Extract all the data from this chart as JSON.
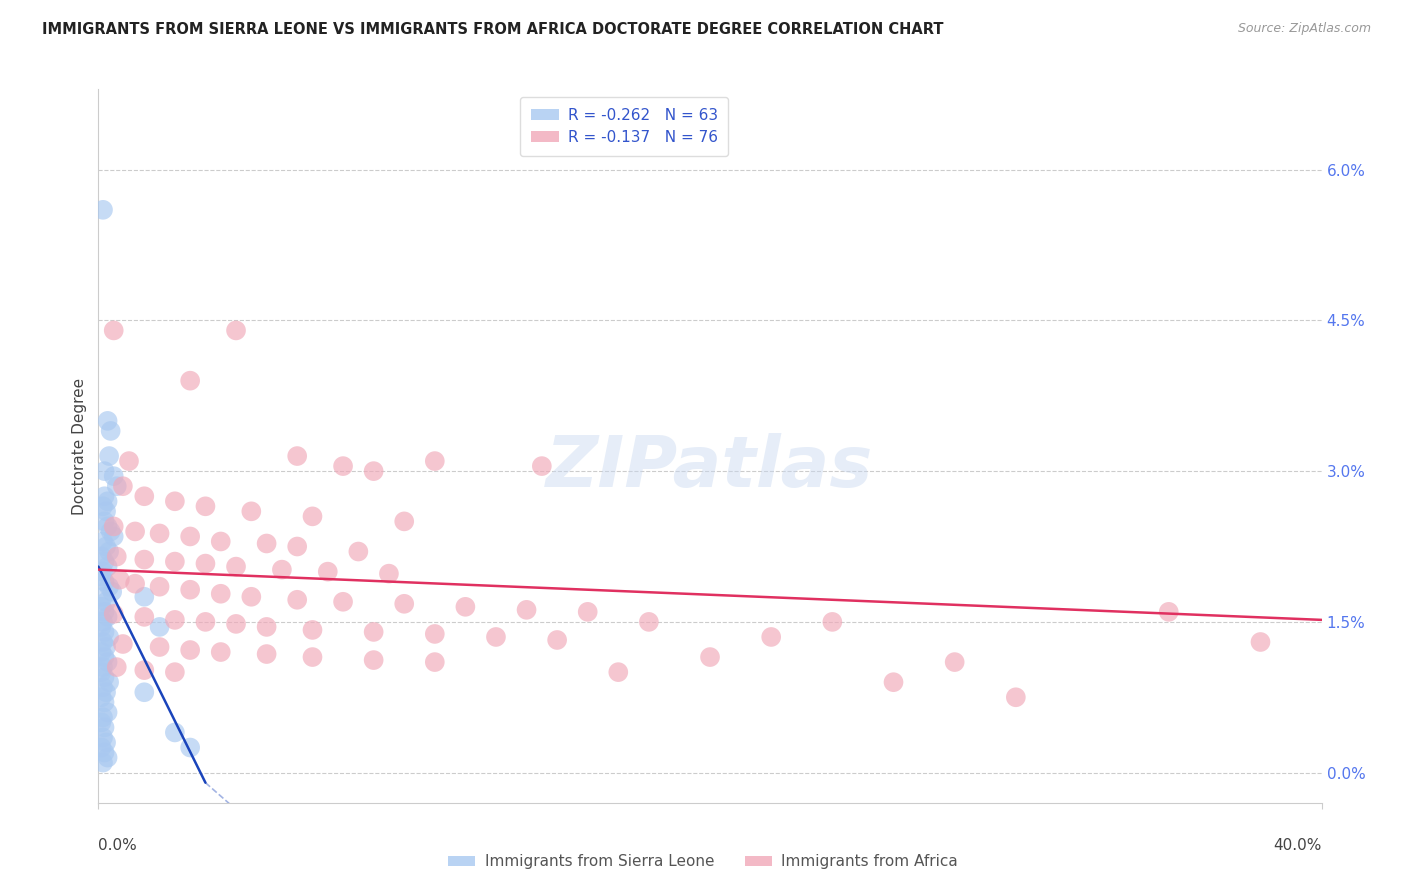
{
  "title": "IMMIGRANTS FROM SIERRA LEONE VS IMMIGRANTS FROM AFRICA DOCTORATE DEGREE CORRELATION CHART",
  "source": "Source: ZipAtlas.com",
  "ylabel": "Doctorate Degree",
  "ytick_values": [
    0.0,
    1.5,
    3.0,
    4.5,
    6.0
  ],
  "xlim": [
    0.0,
    40.0
  ],
  "ylim": [
    -0.3,
    6.8
  ],
  "ymin_display": 0.0,
  "ymax_display": 6.0,
  "legend_entries": [
    {
      "label": "R = -0.262   N = 63",
      "color": "#a8c8f0"
    },
    {
      "label": "R = -0.137   N = 76",
      "color": "#f0a8b8"
    }
  ],
  "legend_labels_bottom": [
    "Immigrants from Sierra Leone",
    "Immigrants from Africa"
  ],
  "sierra_leone_color": "#a8c8f0",
  "africa_color": "#f0a8b8",
  "regression_sierra_color": "#1a44bb",
  "regression_africa_color": "#e03060",
  "background_color": "#ffffff",
  "grid_color": "#cccccc",
  "sierra_leone_points": [
    [
      0.15,
      5.6
    ],
    [
      0.3,
      3.5
    ],
    [
      0.4,
      3.4
    ],
    [
      0.2,
      3.0
    ],
    [
      0.35,
      3.15
    ],
    [
      0.5,
      2.95
    ],
    [
      0.6,
      2.85
    ],
    [
      0.2,
      2.75
    ],
    [
      0.3,
      2.7
    ],
    [
      0.15,
      2.65
    ],
    [
      0.25,
      2.6
    ],
    [
      0.2,
      2.5
    ],
    [
      0.3,
      2.45
    ],
    [
      0.4,
      2.4
    ],
    [
      0.5,
      2.35
    ],
    [
      0.15,
      2.3
    ],
    [
      0.25,
      2.25
    ],
    [
      0.35,
      2.2
    ],
    [
      0.1,
      2.15
    ],
    [
      0.2,
      2.1
    ],
    [
      0.3,
      2.05
    ],
    [
      0.15,
      2.0
    ],
    [
      0.1,
      1.95
    ],
    [
      0.2,
      1.9
    ],
    [
      0.35,
      1.85
    ],
    [
      0.45,
      1.8
    ],
    [
      0.15,
      1.75
    ],
    [
      0.25,
      1.7
    ],
    [
      0.1,
      1.65
    ],
    [
      0.2,
      1.6
    ],
    [
      0.3,
      1.55
    ],
    [
      0.15,
      1.5
    ],
    [
      0.1,
      1.45
    ],
    [
      0.2,
      1.4
    ],
    [
      0.35,
      1.35
    ],
    [
      0.15,
      1.3
    ],
    [
      0.25,
      1.25
    ],
    [
      0.1,
      1.2
    ],
    [
      0.2,
      1.15
    ],
    [
      0.3,
      1.1
    ],
    [
      0.15,
      1.05
    ],
    [
      0.1,
      1.0
    ],
    [
      0.2,
      0.95
    ],
    [
      0.35,
      0.9
    ],
    [
      0.15,
      0.85
    ],
    [
      0.25,
      0.8
    ],
    [
      0.1,
      0.75
    ],
    [
      0.2,
      0.7
    ],
    [
      0.3,
      0.6
    ],
    [
      0.15,
      0.55
    ],
    [
      0.1,
      0.5
    ],
    [
      0.2,
      0.45
    ],
    [
      1.5,
      1.75
    ],
    [
      2.0,
      1.45
    ],
    [
      2.5,
      0.4
    ],
    [
      3.0,
      0.25
    ],
    [
      0.15,
      0.35
    ],
    [
      0.25,
      0.3
    ],
    [
      0.1,
      0.25
    ],
    [
      0.2,
      0.2
    ],
    [
      0.3,
      0.15
    ],
    [
      0.15,
      0.1
    ],
    [
      1.5,
      0.8
    ]
  ],
  "africa_points": [
    [
      0.5,
      4.4
    ],
    [
      4.5,
      4.4
    ],
    [
      3.0,
      3.9
    ],
    [
      1.0,
      3.1
    ],
    [
      8.0,
      3.05
    ],
    [
      11.0,
      3.1
    ],
    [
      14.5,
      3.05
    ],
    [
      6.5,
      3.15
    ],
    [
      9.0,
      3.0
    ],
    [
      0.8,
      2.85
    ],
    [
      1.5,
      2.75
    ],
    [
      2.5,
      2.7
    ],
    [
      3.5,
      2.65
    ],
    [
      5.0,
      2.6
    ],
    [
      7.0,
      2.55
    ],
    [
      10.0,
      2.5
    ],
    [
      0.5,
      2.45
    ],
    [
      1.2,
      2.4
    ],
    [
      2.0,
      2.38
    ],
    [
      3.0,
      2.35
    ],
    [
      4.0,
      2.3
    ],
    [
      5.5,
      2.28
    ],
    [
      6.5,
      2.25
    ],
    [
      8.5,
      2.2
    ],
    [
      0.6,
      2.15
    ],
    [
      1.5,
      2.12
    ],
    [
      2.5,
      2.1
    ],
    [
      3.5,
      2.08
    ],
    [
      4.5,
      2.05
    ],
    [
      6.0,
      2.02
    ],
    [
      7.5,
      2.0
    ],
    [
      9.5,
      1.98
    ],
    [
      0.7,
      1.92
    ],
    [
      1.2,
      1.88
    ],
    [
      2.0,
      1.85
    ],
    [
      3.0,
      1.82
    ],
    [
      4.0,
      1.78
    ],
    [
      5.0,
      1.75
    ],
    [
      6.5,
      1.72
    ],
    [
      8.0,
      1.7
    ],
    [
      10.0,
      1.68
    ],
    [
      12.0,
      1.65
    ],
    [
      14.0,
      1.62
    ],
    [
      0.5,
      1.58
    ],
    [
      1.5,
      1.55
    ],
    [
      2.5,
      1.52
    ],
    [
      3.5,
      1.5
    ],
    [
      4.5,
      1.48
    ],
    [
      5.5,
      1.45
    ],
    [
      7.0,
      1.42
    ],
    [
      9.0,
      1.4
    ],
    [
      11.0,
      1.38
    ],
    [
      13.0,
      1.35
    ],
    [
      15.0,
      1.32
    ],
    [
      0.8,
      1.28
    ],
    [
      2.0,
      1.25
    ],
    [
      3.0,
      1.22
    ],
    [
      4.0,
      1.2
    ],
    [
      5.5,
      1.18
    ],
    [
      7.0,
      1.15
    ],
    [
      9.0,
      1.12
    ],
    [
      11.0,
      1.1
    ],
    [
      0.6,
      1.05
    ],
    [
      1.5,
      1.02
    ],
    [
      2.5,
      1.0
    ],
    [
      18.0,
      1.5
    ],
    [
      24.0,
      1.5
    ],
    [
      35.0,
      1.6
    ],
    [
      20.0,
      1.15
    ],
    [
      26.0,
      0.9
    ],
    [
      38.0,
      1.3
    ],
    [
      16.0,
      1.6
    ],
    [
      22.0,
      1.35
    ],
    [
      30.0,
      0.75
    ],
    [
      17.0,
      1.0
    ],
    [
      28.0,
      1.1
    ]
  ],
  "sierra_leone_regression": {
    "x_start": 0.0,
    "y_start": 2.05,
    "x_end": 3.5,
    "y_end": -0.1
  },
  "sierra_leone_regression_dashed": {
    "x_start": 3.5,
    "x_end": 5.0,
    "y_start": -0.1,
    "y_end": -0.5
  },
  "africa_regression": {
    "x_start": 0.0,
    "y_start": 2.02,
    "x_end": 40.0,
    "y_end": 1.52
  }
}
